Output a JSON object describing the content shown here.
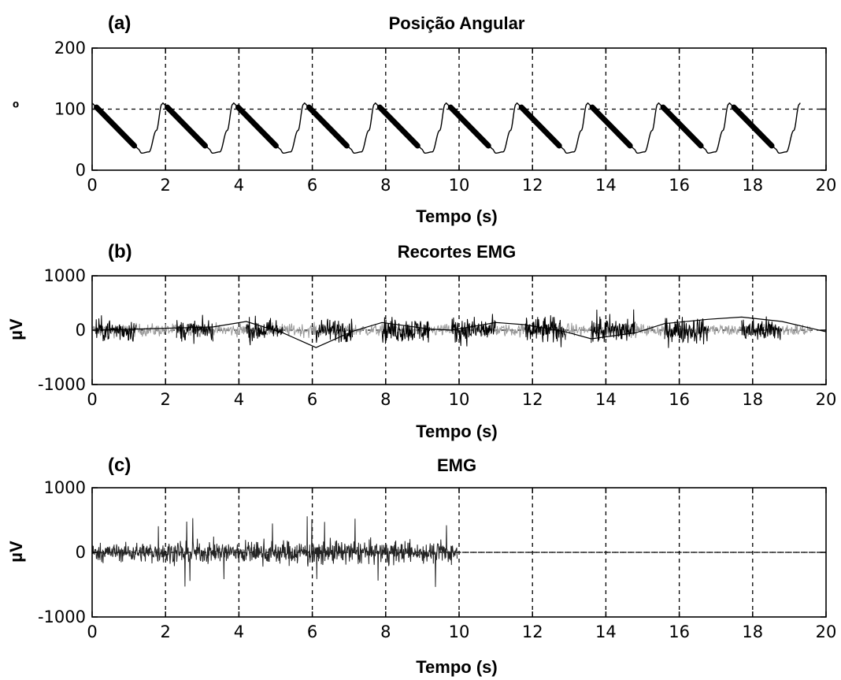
{
  "chart_data": [
    {
      "type": "line",
      "panel_label": "(a)",
      "title": "Posição Angular",
      "xlabel": "Tempo (s)",
      "ylabel": "º",
      "xlim": [
        0,
        20
      ],
      "ylim": [
        0,
        200
      ],
      "xticks": [
        0,
        2,
        4,
        6,
        8,
        10,
        12,
        14,
        16,
        18,
        20
      ],
      "yticks": [
        0,
        100,
        200
      ],
      "grid": true,
      "period_s": 1.93,
      "cycles": 10,
      "series": [
        {
          "role": "angle-full",
          "color": "#000000",
          "cycle_shape": {
            "t": [
              0,
              1.25,
              1.35,
              1.55,
              1.75,
              1.9,
              1.93
            ],
            "y": [
              110,
              35,
              28,
              30,
              65,
              108,
              110
            ]
          }
        },
        {
          "role": "angle-segments-highlighted",
          "color": "#000000",
          "segment_start_offset_s": 0.12,
          "segment_end_offset_s": 1.15,
          "segment_y": [
            103,
            40
          ]
        }
      ]
    },
    {
      "type": "line",
      "panel_label": "(b)",
      "title": "Recortes EMG",
      "xlabel": "Tempo (s)",
      "ylabel": "µV",
      "xlim": [
        0,
        20
      ],
      "ylim": [
        -1000,
        1000
      ],
      "xticks": [
        0,
        2,
        4,
        6,
        8,
        10,
        12,
        14,
        16,
        18,
        20
      ],
      "yticks": [
        -1000,
        0,
        1000
      ],
      "grid": true,
      "series": [
        {
          "role": "emg-gray-background",
          "color": "#999999",
          "x_range": [
            0,
            19.6
          ],
          "amplitude_uV": 200
        },
        {
          "role": "emg-black-cuts",
          "color": "#000000",
          "bursts": [
            {
              "start": 0.1,
              "end": 1.2,
              "amp": 330
            },
            {
              "start": 2.3,
              "end": 3.3,
              "amp": 300
            },
            {
              "start": 4.2,
              "end": 5.2,
              "amp": 340
            },
            {
              "start": 6.1,
              "end": 7.1,
              "amp": 330
            },
            {
              "start": 7.9,
              "end": 9.2,
              "amp": 360
            },
            {
              "start": 9.8,
              "end": 11.0,
              "amp": 380
            },
            {
              "start": 11.8,
              "end": 12.9,
              "amp": 390
            },
            {
              "start": 13.6,
              "end": 14.8,
              "amp": 420
            },
            {
              "start": 15.6,
              "end": 16.8,
              "amp": 380
            },
            {
              "start": 17.7,
              "end": 18.8,
              "amp": 360
            }
          ]
        },
        {
          "role": "connector-line",
          "color": "#000000",
          "x": [
            0.1,
            1.2,
            2.3,
            3.3,
            4.2,
            5.2,
            6.1,
            7.1,
            7.9,
            9.2,
            9.8,
            11.0,
            11.8,
            12.9,
            13.6,
            14.8,
            15.6,
            16.8,
            17.7,
            18.8,
            20
          ],
          "y": [
            0,
            20,
            40,
            60,
            160,
            -50,
            -320,
            -20,
            140,
            20,
            0,
            140,
            100,
            -30,
            -160,
            -50,
            120,
            200,
            240,
            160,
            -30
          ]
        }
      ]
    },
    {
      "type": "line",
      "panel_label": "(c)",
      "title": "EMG",
      "xlabel": "Tempo (s)",
      "ylabel": "µV",
      "xlim": [
        0,
        20
      ],
      "ylim": [
        -1000,
        1000
      ],
      "xticks": [
        0,
        2,
        4,
        6,
        8,
        10,
        12,
        14,
        16,
        18,
        20
      ],
      "yticks": [
        -1000,
        0,
        1000
      ],
      "grid": true,
      "series": [
        {
          "role": "emg-concatenated",
          "color": "#222222",
          "x_range": [
            0,
            9.95
          ],
          "amplitude_uV": 260,
          "spike_max_uV": 560
        },
        {
          "role": "zero-line",
          "color": "#000000",
          "x": [
            9.95,
            20
          ],
          "y": [
            0,
            0
          ]
        }
      ]
    }
  ]
}
